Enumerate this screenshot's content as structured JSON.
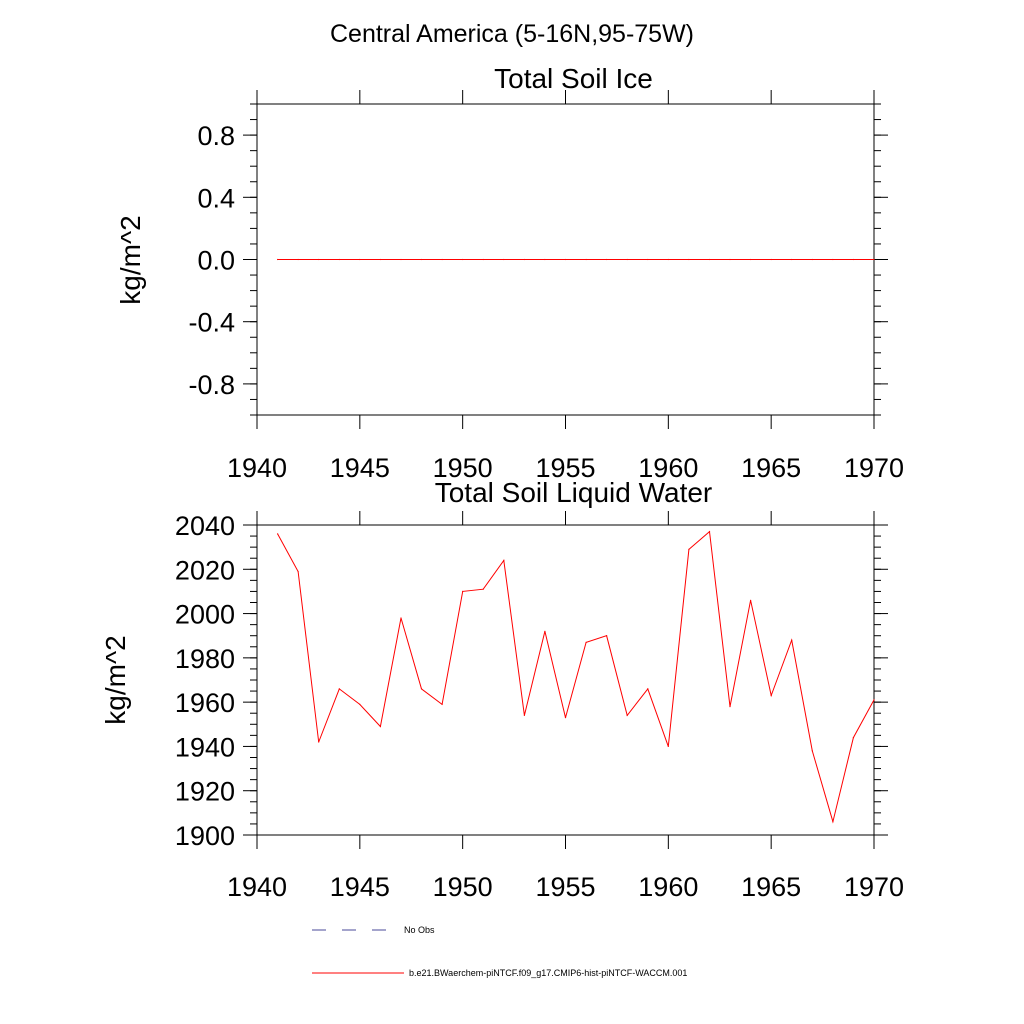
{
  "page_title": "Central America (5-16N,95-75W)",
  "legend": {
    "obs_label": "No Obs",
    "model_label": "b.e21.BWaerchem-piNTCF.f09_g17.CMIP6-hist-piNTCF-WACCM.001"
  },
  "colors": {
    "model": "#ff0000",
    "obs": "#4a4a9a",
    "frame": "#000000"
  },
  "chart_data": [
    {
      "type": "line",
      "title": "Total Soil Ice",
      "xlabel": "",
      "ylabel": "kg/m^2",
      "xlim": [
        1940,
        1970
      ],
      "ylim": [
        -1.0,
        1.0
      ],
      "xticks": [
        1940,
        1945,
        1950,
        1955,
        1960,
        1965,
        1970
      ],
      "xtick_labels": [
        "1940",
        "1945",
        "1950",
        "1955",
        "1960",
        "1965",
        "1970"
      ],
      "yticks": [
        0.8,
        0.4,
        0.0,
        -0.4,
        -0.8
      ],
      "ytick_labels": [
        "0.8",
        "0.4",
        "0.0",
        "-0.4",
        "-0.8"
      ],
      "grid": false,
      "series": [
        {
          "x": [
            1941,
            1942,
            1943,
            1944,
            1945,
            1946,
            1947,
            1948,
            1949,
            1950,
            1951,
            1952,
            1953,
            1954,
            1955,
            1956,
            1957,
            1958,
            1959,
            1960,
            1961,
            1962,
            1963,
            1964,
            1965,
            1966,
            1967,
            1968,
            1969,
            1970
          ],
          "values": [
            0,
            0,
            0,
            0,
            0,
            0,
            0,
            0,
            0,
            0,
            0,
            0,
            0,
            0,
            0,
            0,
            0,
            0,
            0,
            0,
            0,
            0,
            0,
            0,
            0,
            0,
            0,
            0,
            0,
            0
          ]
        }
      ]
    },
    {
      "type": "line",
      "title": "Total Soil Liquid Water",
      "xlabel": "",
      "ylabel": "kg/m^2",
      "xlim": [
        1940,
        1970
      ],
      "ylim": [
        1900,
        2040
      ],
      "xticks": [
        1940,
        1945,
        1950,
        1955,
        1960,
        1965,
        1970
      ],
      "xtick_labels": [
        "1940",
        "1945",
        "1950",
        "1955",
        "1960",
        "1965",
        "1970"
      ],
      "yticks": [
        2040,
        2020,
        2000,
        1980,
        1960,
        1940,
        1920,
        1900
      ],
      "ytick_labels": [
        "2040",
        "2020",
        "2000",
        "1980",
        "1960",
        "1940",
        "1920",
        "1900"
      ],
      "grid": false,
      "series": [
        {
          "x": [
            1941,
            1942,
            1943,
            1944,
            1945,
            1946,
            1947,
            1948,
            1949,
            1950,
            1951,
            1952,
            1953,
            1954,
            1955,
            1956,
            1957,
            1958,
            1959,
            1960,
            1961,
            1962,
            1963,
            1964,
            1965,
            1966,
            1967,
            1968,
            1969,
            1970
          ],
          "values": [
            2036,
            2019,
            1942,
            1966,
            1959,
            1949,
            1998,
            1966,
            1959,
            2010,
            2011,
            2024,
            1954,
            1992,
            1953,
            1987,
            1990,
            1954,
            1966,
            1940,
            2029,
            2037,
            1958,
            2006,
            1963,
            1988,
            1938,
            1906,
            1944,
            1961
          ]
        }
      ]
    }
  ]
}
